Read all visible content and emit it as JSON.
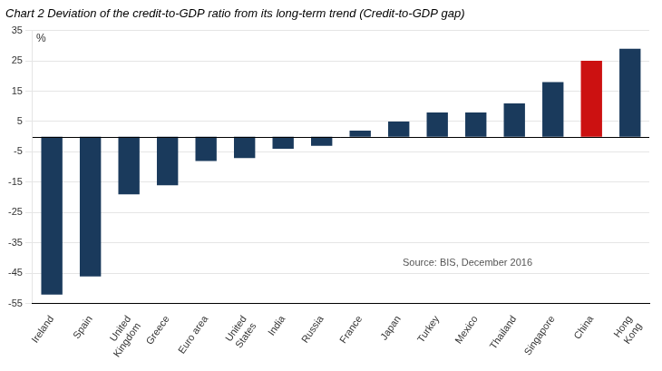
{
  "chart_data": {
    "type": "bar",
    "title": "Chart 2 Deviation of the credit-to-GDP ratio from its long-term trend (Credit-to-GDP gap)",
    "ylabel": "%",
    "annotation": "Source: BIS, December 2016",
    "categories": [
      "Ireland",
      "Spain",
      "United\nKingdom",
      "Greece",
      "Euro area",
      "United\nStates",
      "India",
      "Russia",
      "France",
      "Japan",
      "Turkey",
      "Mexico",
      "Thailand",
      "Singapore",
      "China",
      "Hong\nKong"
    ],
    "values": [
      -52,
      -46,
      -19,
      -16,
      -8,
      -7,
      -4,
      -3,
      2,
      5,
      8,
      8,
      11,
      18,
      25,
      29
    ],
    "colors": [
      "#1a3a5c",
      "#1a3a5c",
      "#1a3a5c",
      "#1a3a5c",
      "#1a3a5c",
      "#1a3a5c",
      "#1a3a5c",
      "#1a3a5c",
      "#1a3a5c",
      "#1a3a5c",
      "#1a3a5c",
      "#1a3a5c",
      "#1a3a5c",
      "#1a3a5c",
      "#cc1111",
      "#1a3a5c"
    ],
    "ylim": [
      -55,
      35
    ],
    "yticks": [
      -55,
      -45,
      -35,
      -25,
      -15,
      -5,
      5,
      15,
      25,
      35
    ],
    "grid": true
  }
}
